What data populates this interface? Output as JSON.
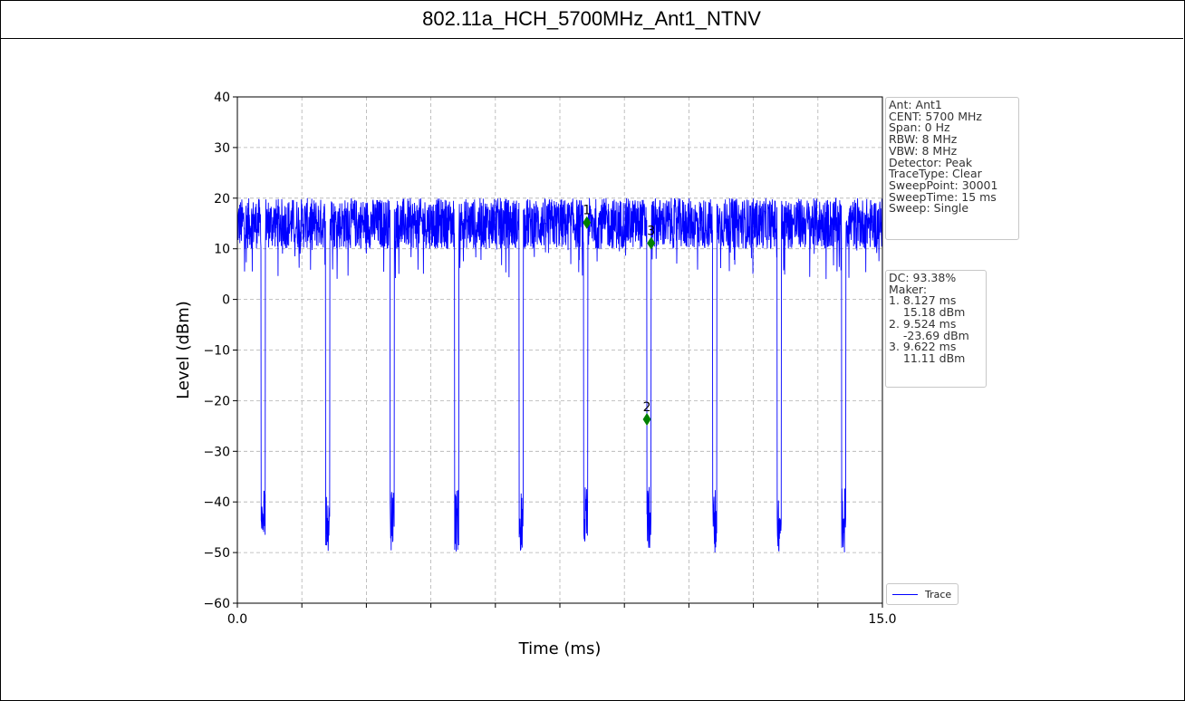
{
  "title": "802.11a_HCH_5700MHz_Ant1_NTNV",
  "colors": {
    "trace": "#0000ff",
    "marker": "#008000",
    "grid": "#b0b0b0"
  },
  "chart_data": {
    "type": "line",
    "xlabel": "Time (ms)",
    "ylabel": "Level (dBm)",
    "xlim": [
      0.0,
      15.0
    ],
    "ylim": [
      -60,
      40
    ],
    "yticks": [
      -60,
      -50,
      -40,
      -30,
      -20,
      -10,
      0,
      10,
      20,
      30,
      40
    ],
    "xtick_labels": [
      "0.0",
      "15.0"
    ],
    "xticks_minor": [
      0,
      1.5,
      3.0,
      4.5,
      6.0,
      7.5,
      9.0,
      10.5,
      12.0,
      13.5,
      15.0
    ],
    "grid": true,
    "legend": {
      "placement": "bottom-right-outside",
      "entries": [
        "Trace"
      ]
    },
    "series": [
      {
        "name": "Trace",
        "on_level_range_dBm": [
          10,
          20
        ],
        "off_level_range_dBm": [
          -50,
          -37
        ],
        "gap_centers_ms": [
          0.6,
          2.1,
          3.6,
          5.1,
          6.6,
          8.1,
          9.57,
          11.1,
          12.6,
          14.1
        ],
        "gap_width_ms": 0.1
      }
    ],
    "markers": [
      {
        "label": "1",
        "x": 8.127,
        "y": 15.18
      },
      {
        "label": "2",
        "x": 9.524,
        "y": -23.69
      },
      {
        "label": "3",
        "x": 9.622,
        "y": 11.11
      }
    ]
  },
  "info_box": {
    "lines": [
      "Ant: Ant1",
      "CENT: 5700 MHz",
      "Span: 0 Hz",
      "RBW: 8 MHz",
      "VBW: 8 MHz",
      "Detector: Peak",
      "TraceType: Clear",
      "SweepPoint: 30001",
      "SweepTime: 15 ms",
      "Sweep: Single"
    ]
  },
  "dc_box": {
    "lines": [
      "DC: 93.38%",
      "Maker:",
      "1. 8.127 ms",
      "    15.18 dBm",
      "2. 9.524 ms",
      "    -23.69 dBm",
      "3. 9.622 ms",
      "    11.11 dBm"
    ]
  }
}
